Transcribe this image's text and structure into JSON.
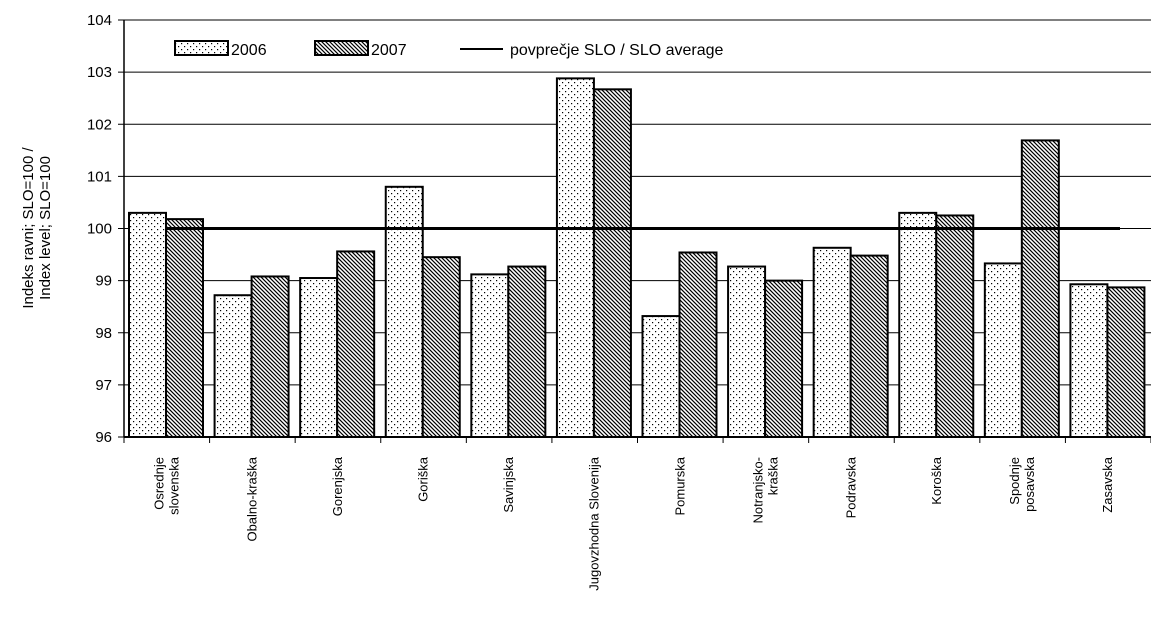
{
  "chart_data": {
    "type": "bar",
    "ylabel_lines": [
      "Indeks ravni; SLO=100 /",
      "Index level; SLO=100"
    ],
    "ylim": [
      96,
      104
    ],
    "yticks": [
      "96",
      "97",
      "98",
      "99",
      "100",
      "101",
      "102",
      "103",
      "104"
    ],
    "grid": true,
    "legend_position": "top",
    "reference_line": {
      "name": "povprečje SLO / SLO average",
      "value": 100
    },
    "categories": [
      [
        "Osrednje",
        "slovenska"
      ],
      [
        "Obalno-kraška"
      ],
      [
        "Gorenjska"
      ],
      [
        "Goriška"
      ],
      [
        "Savinjska"
      ],
      [
        "Jugovzhodna Slovenija"
      ],
      [
        "Pomurska"
      ],
      [
        "Notranjsko-",
        "kraška"
      ],
      [
        "Podravska"
      ],
      [
        "Koroška"
      ],
      [
        "Spodnje",
        "posavska"
      ],
      [
        "Zasavska"
      ]
    ],
    "series": [
      {
        "name": "2006",
        "pattern": "dots",
        "values": [
          100.3,
          98.72,
          99.05,
          100.8,
          99.12,
          102.88,
          98.32,
          99.27,
          99.63,
          100.3,
          99.33,
          98.93
        ]
      },
      {
        "name": "2007",
        "pattern": "hatch",
        "values": [
          100.18,
          99.08,
          99.56,
          99.45,
          99.27,
          102.67,
          99.54,
          99.0,
          99.48,
          100.25,
          101.69,
          98.87
        ]
      }
    ]
  }
}
